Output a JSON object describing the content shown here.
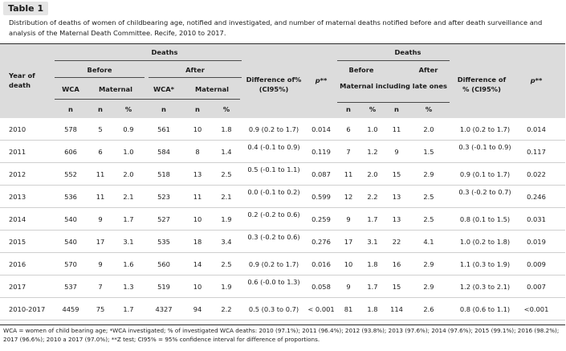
{
  "table_label": "Table 1",
  "caption": "Distribution of deaths of women of childbearing age, notified and investigated, and number of maternal deaths notified before and after death surveillance and analysis of the Maternal Death Committee. Recife, 2010 to 2017.",
  "header": {
    "deaths_left": "Deaths",
    "deaths_right": "Deaths",
    "year_of_death": "Year of death",
    "before": "Before",
    "after": "After",
    "before_right": "Before",
    "after_right": "After",
    "wca": "WCA",
    "maternal_before": "Maternal",
    "wca_star": "WCA*",
    "maternal_after": "Maternal",
    "difference_left": "Difference of% (CI95%)",
    "p_left": "p**",
    "maternal_late": "Maternal including late ones",
    "difference_right": "Difference of % (CI95%)",
    "p_right": "p**",
    "sub": [
      "n",
      "n",
      "%",
      "n",
      "n",
      "%",
      "n",
      "%",
      "n",
      "%"
    ]
  },
  "rows": [
    [
      "2010",
      "578",
      "5",
      "0.9",
      "561",
      "10",
      "1.8",
      "0.9 (0.2 to 1.7)",
      "0.014",
      "6",
      "1.0",
      "11",
      "2.0",
      "1.0 (0.2 to 1.7)",
      "0.014"
    ],
    [
      "2011",
      "606",
      "6",
      "1.0",
      "584",
      "8",
      "1.4",
      "0.4 (-0.1 to 0.9)",
      "0.119",
      "7",
      "1.2",
      "9",
      "1.5",
      "0.3 (-0.1 to 0.9)",
      "0.117"
    ],
    [
      "2012",
      "552",
      "11",
      "2.0",
      "518",
      "13",
      "2.5",
      "0.5 (-0.1 to 1.1)",
      "0.087",
      "11",
      "2.0",
      "15",
      "2.9",
      "0.9 (0.1 to 1.7)",
      "0.022"
    ],
    [
      "2013",
      "536",
      "11",
      "2.1",
      "523",
      "11",
      "2.1",
      "0.0 (-0.1 to 0.2)",
      "0.599",
      "12",
      "2.2",
      "13",
      "2.5",
      "0.3 (-0.2 to 0.7)",
      "0.246"
    ],
    [
      "2014",
      "540",
      "9",
      "1.7",
      "527",
      "10",
      "1.9",
      "0.2 (-0.2 to 0.6)",
      "0.259",
      "9",
      "1.7",
      "13",
      "2.5",
      "0.8 (0.1 to 1.5)",
      "0.031"
    ],
    [
      "2015",
      "540",
      "17",
      "3.1",
      "535",
      "18",
      "3.4",
      "0.3 (-0.2 to 0.6)",
      "0.276",
      "17",
      "3.1",
      "22",
      "4.1",
      "1.0 (0.2 to 1.8)",
      "0.019"
    ],
    [
      "2016",
      "570",
      "9",
      "1.6",
      "560",
      "14",
      "2.5",
      "0.9 (0.2 to 1.7)",
      "0.016",
      "10",
      "1.8",
      "16",
      "2.9",
      "1.1 (0.3 to 1.9)",
      "0.009"
    ],
    [
      "2017",
      "537",
      "7",
      "1.3",
      "519",
      "10",
      "1.9",
      "0.6 (-0.0 to 1.3)",
      "0.058",
      "9",
      "1.7",
      "15",
      "2.9",
      "1.2 (0.3 to 2.1)",
      "0.007"
    ],
    [
      "2010-2017",
      "4459",
      "75",
      "1.7",
      "4327",
      "94",
      "2.2",
      "0.5 (0.3 to 0.7)",
      "< 0.001",
      "81",
      "1.8",
      "114",
      "2.6",
      "0.8 (0.6 to 1.1)",
      "<0.001"
    ]
  ],
  "footnote": "WCA = women of child bearing age; *WCA investigated; % of investigated WCA deaths: 2010 (97.1%); 2011 (96.4%); 2012 (93.8%); 2013 (97.6%); 2014 (97.6%); 2015 (99.1%); 2016 (98.2%); 2017 (96.6%); 2010 a 2017 (97.0%); **Z test; CI95% = 95% confidence interval for difference of proportions."
}
